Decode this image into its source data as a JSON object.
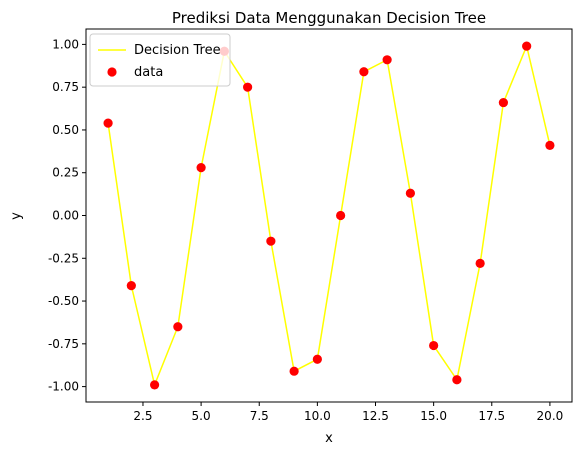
{
  "chart_data": {
    "type": "scatter",
    "title": "Prediksi Data Menggunakan Decision Tree",
    "xlabel": "x",
    "ylabel": "y",
    "xlim": [
      0.05,
      20.95
    ],
    "ylim": [
      -1.09,
      1.09
    ],
    "x_ticks": [
      "2.5",
      "5.0",
      "7.5",
      "10.0",
      "12.5",
      "15.0",
      "17.5",
      "20.0"
    ],
    "y_ticks": [
      "-1.00",
      "-0.75",
      "-0.50",
      "-0.25",
      "0.00",
      "0.25",
      "0.50",
      "0.75",
      "1.00"
    ],
    "grid": false,
    "legend_position": "upper-left",
    "series": [
      {
        "name": "Decision Tree",
        "kind": "line",
        "color": "#ffff00",
        "x": [
          1,
          2,
          3,
          4,
          5,
          6,
          7,
          8,
          9,
          10,
          11,
          12,
          13,
          14,
          15,
          16,
          17,
          18,
          19,
          20
        ],
        "y": [
          0.54,
          -0.41,
          -0.99,
          -0.65,
          0.28,
          0.96,
          0.75,
          -0.15,
          -0.91,
          -0.84,
          0.0,
          0.84,
          0.91,
          0.13,
          -0.76,
          -0.96,
          -0.28,
          0.66,
          0.99,
          0.41
        ]
      },
      {
        "name": "data",
        "kind": "scatter",
        "color": "#ff0000",
        "x": [
          1,
          2,
          3,
          4,
          5,
          6,
          7,
          8,
          9,
          10,
          11,
          12,
          13,
          14,
          15,
          16,
          17,
          18,
          19,
          20
        ],
        "y": [
          0.54,
          -0.41,
          -0.99,
          -0.65,
          0.28,
          0.96,
          0.75,
          -0.15,
          -0.91,
          -0.84,
          0.0,
          0.84,
          0.91,
          0.13,
          -0.76,
          -0.96,
          -0.28,
          0.66,
          0.99,
          0.41
        ]
      }
    ]
  }
}
